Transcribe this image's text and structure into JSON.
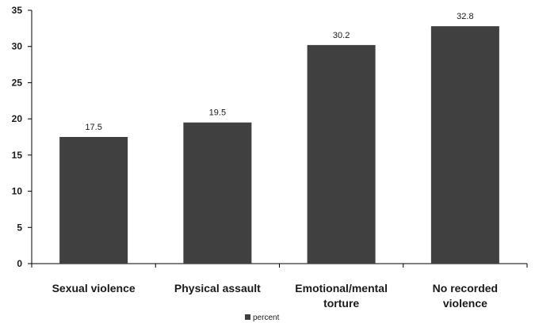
{
  "chart_data": {
    "type": "bar",
    "categories": [
      [
        "Sexual  violence"
      ],
      [
        "Physical assault"
      ],
      [
        "Emotional/mental",
        "torture"
      ],
      [
        "No recorded",
        "violence"
      ]
    ],
    "series": [
      {
        "name": "percent",
        "values": [
          17.5,
          19.5,
          30.2,
          32.8
        ]
      }
    ],
    "data_labels": [
      "17.5",
      "19.5",
      "30.2",
      "32.8"
    ],
    "y_ticks": [
      "0",
      "5",
      "10",
      "15",
      "20",
      "25",
      "30",
      "35"
    ],
    "ylim": [
      0,
      35
    ],
    "grid": false,
    "legend": {
      "position": "bottom",
      "entries": [
        "percent"
      ]
    },
    "colors": {
      "bar": "#404040",
      "axis": "#000000"
    }
  }
}
